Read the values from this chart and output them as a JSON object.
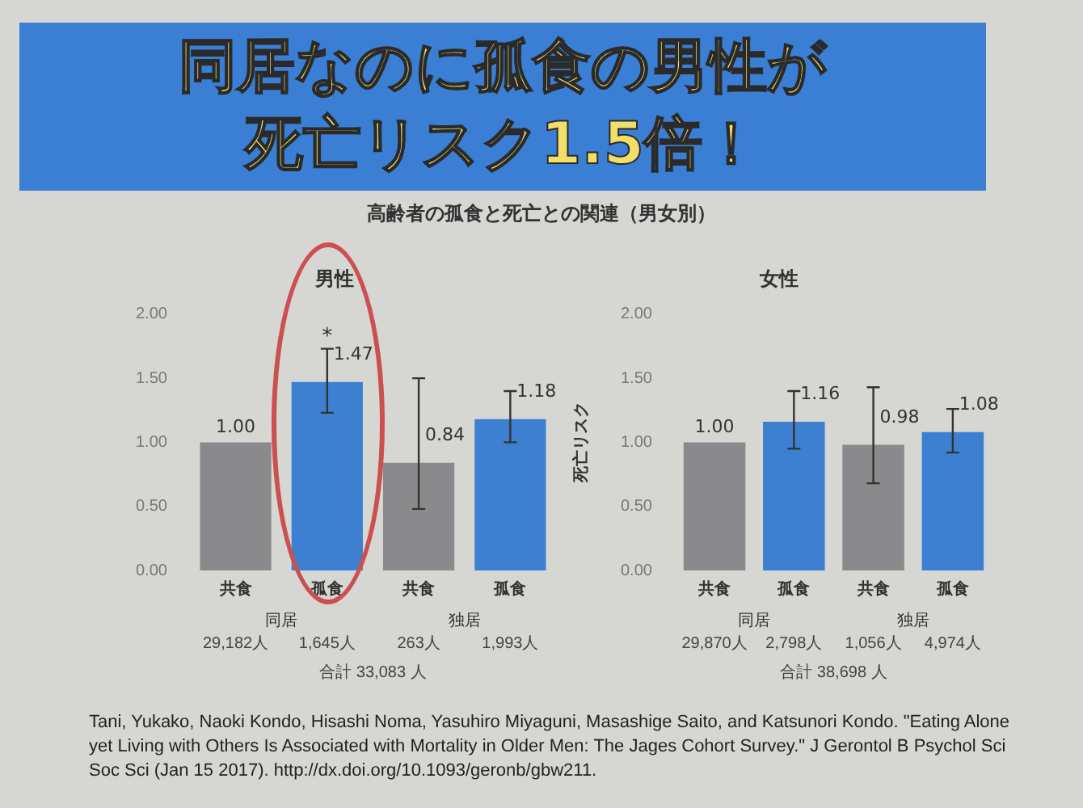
{
  "chart_data": [
    {
      "type": "bar",
      "title": "男性",
      "categories": [
        "共食",
        "孤食",
        "共食",
        "孤食"
      ],
      "values": [
        1.0,
        1.47,
        0.84,
        1.18
      ],
      "colors": [
        "#8a8a8c",
        "#3d80d2",
        "#8a8a8c",
        "#3d80d2"
      ],
      "errors": [
        null,
        [
          1.23,
          1.73
        ],
        [
          0.48,
          1.5
        ],
        [
          1.0,
          1.4
        ]
      ],
      "value_labels": [
        "1.00",
        "1.47",
        "0.84",
        "1.18"
      ],
      "ylim": [
        0,
        2
      ],
      "yticks": [
        {
          "value": 0,
          "label": "0.00"
        },
        {
          "value": 0.5,
          "label": "0.50"
        },
        {
          "value": 1,
          "label": "1.00"
        },
        {
          "value": 1.5,
          "label": "1.50"
        },
        {
          "value": 2,
          "label": "2.00"
        }
      ],
      "grid": false,
      "annotations": [
        "同居",
        "独居",
        "29,182人",
        "1,645人",
        "263人",
        "1,993人",
        "合計 33,083 人",
        {
          "text": "*",
          "x": "孤食",
          "y": 1.78
        },
        "同居なのに孤食の男性が",
        "死亡リスク1.5倍！",
        "高齢者の孤食と死亡との関連（男女別）",
        "Tani, Yukako, Naoki Kondo, Hisashi Noma, Yasuhiro Miyaguni, Masashige Saito, and Katsunori Kondo. \"Eating Alone yet Living with Others Is Associated with Mortality in Older Men: The Jages Cohort Survey.\" J Gerontol B Psychol Sci Soc Sci (Jan 15 2017). http://dx.doi.org/10.1093/geronb/gbw211."
      ]
    },
    {
      "type": "bar",
      "title": "女性",
      "ylabel": "死亡リスク",
      "categories": [
        "共食",
        "孤食",
        "共食",
        "孤食"
      ],
      "values": [
        1.0,
        1.16,
        0.98,
        1.08
      ],
      "colors": [
        "#8a8a8c",
        "#3d80d2",
        "#8a8a8c",
        "#3d80d2"
      ],
      "errors": [
        null,
        [
          0.95,
          1.4
        ],
        [
          0.68,
          1.43
        ],
        [
          0.92,
          1.26
        ]
      ],
      "value_labels": [
        "1.00",
        "1.16",
        "0.98",
        "1.08"
      ],
      "ylim": [
        0,
        2
      ],
      "yticks": [
        {
          "value": 0,
          "label": "0.00"
        },
        {
          "value": 0.5,
          "label": "0.50"
        },
        {
          "value": 1,
          "label": "1.00"
        },
        {
          "value": 1.5,
          "label": "1.50"
        },
        {
          "value": 2,
          "label": "2.00"
        }
      ],
      "grid": false,
      "annotations": [
        "同居",
        "独居",
        "29,870人",
        "2,798人",
        "1,056人",
        "4,974人",
        "合計 38,698 人"
      ]
    }
  ]
}
